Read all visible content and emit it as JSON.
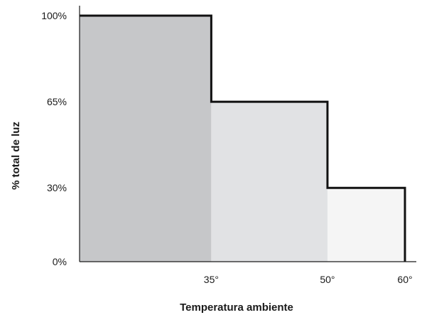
{
  "chart_data": {
    "type": "area",
    "xlabel": "Temperatura ambiente",
    "ylabel": "% total de luz",
    "x_tick_labels": [
      "35°",
      "50°",
      "60°"
    ],
    "y_tick_labels": [
      "0%",
      "30%",
      "65%",
      "100%"
    ],
    "y_ticks": [
      0,
      30,
      65,
      100
    ],
    "xlim": [
      18,
      60
    ],
    "ylim": [
      0,
      100
    ],
    "grid": false,
    "steps": [
      {
        "x_start": 18,
        "x_end": 35,
        "value": 100,
        "fill": "#c6c7c9"
      },
      {
        "x_start": 35,
        "x_end": 50,
        "value": 65,
        "fill": "#e1e2e4"
      },
      {
        "x_start": 50,
        "x_end": 60,
        "value": 30,
        "fill": "#f5f5f5"
      }
    ],
    "x_tick_positions": [
      35,
      50,
      60
    ],
    "outline_color": "#111111",
    "axis_color": "#1a1a1a"
  }
}
